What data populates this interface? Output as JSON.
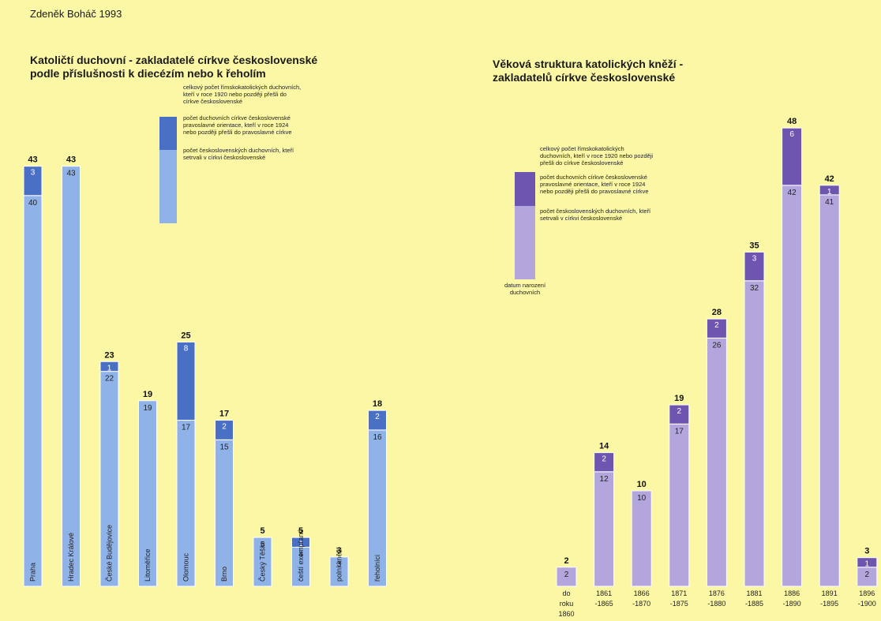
{
  "author": "Zdeněk Boháč 1993",
  "colors": {
    "background": "#fbf7a4",
    "left_light": "#8fb2e8",
    "left_dark": "#4a70c6",
    "right_light": "#b3a6dd",
    "right_dark": "#6e56b0"
  },
  "chart_data": [
    {
      "type": "bar",
      "stacked": true,
      "title_lines": [
        "Katoličtí duchovní - zakladatelé církve československé",
        "podle příslušnosti k diecézím nebo k řeholím"
      ],
      "legend": [
        "celkový počet římskokatolických duchovních, kteří v roce 1920 nebo později přešli do církve československé",
        "počet duchovních církve československé pravoslavné orientace, kteří v roce 1924 nebo později přešli do pravoslavné církve",
        "počet československých duchovních, kteří setrvali v církvi československé"
      ],
      "categories": [
        "Praha",
        "Hradec Králové",
        "České Budějovice",
        "Litoměřice",
        "Olomouc",
        "Brno",
        "Český Těšín",
        "čeští exempřané",
        "polní kněží",
        "řeholníci"
      ],
      "totals": [
        43,
        43,
        23,
        19,
        25,
        17,
        5,
        5,
        3,
        18
      ],
      "series": [
        {
          "values": [
            40,
            43,
            22,
            19,
            17,
            15,
            5,
            4,
            3,
            16
          ]
        },
        {
          "values": [
            3,
            0,
            1,
            0,
            8,
            2,
            0,
            1,
            0,
            2
          ]
        }
      ]
    },
    {
      "type": "bar",
      "stacked": true,
      "title_lines": [
        "Věková struktura katolických kněží -",
        "zakladatelů církve československé"
      ],
      "legend": [
        "celkový počet římskokatolických duchovních, kteří v roce 1920 nebo později přešli do církve československé",
        "počet duchovních církve československé pravoslavné orientace, kteří v roce 1924 nebo později přešli do pravoslavné církve",
        "počet československých duchovních, kteří setrvali v církvi československé"
      ],
      "axis_note": "datum narození duchovních",
      "categories": [
        "do roku 1860",
        "1861 -1865",
        "1866 -1870",
        "1871 -1875",
        "1876 -1880",
        "1881 -1885",
        "1886 -1890",
        "1891 -1895",
        "1896 -1900"
      ],
      "totals": [
        2,
        14,
        10,
        19,
        28,
        35,
        48,
        42,
        3
      ],
      "series": [
        {
          "values": [
            2,
            12,
            10,
            17,
            26,
            32,
            42,
            41,
            2
          ]
        },
        {
          "values": [
            0,
            2,
            0,
            2,
            2,
            3,
            6,
            1,
            1
          ]
        }
      ]
    }
  ]
}
